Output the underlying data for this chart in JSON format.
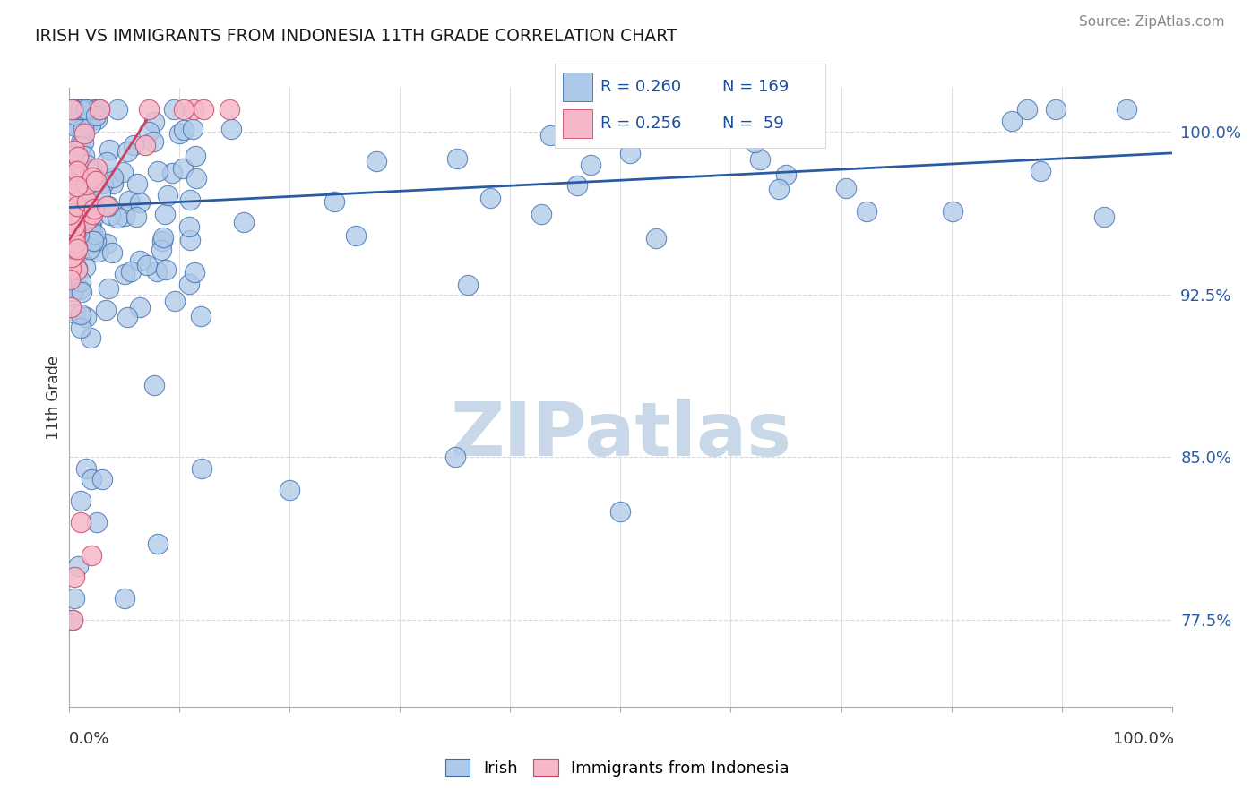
{
  "title": "IRISH VS IMMIGRANTS FROM INDONESIA 11TH GRADE CORRELATION CHART",
  "source": "Source: ZipAtlas.com",
  "ylabel": "11th Grade",
  "blue_color": "#adc8e8",
  "blue_edge_color": "#3a6cb0",
  "blue_line_color": "#2a5ba0",
  "pink_color": "#f5b8c8",
  "pink_edge_color": "#d04868",
  "pink_line_color": "#d04060",
  "legend_text_color": "#1a4d9e",
  "title_color": "#1a1a1a",
  "source_color": "#888888",
  "right_tick_color": "#2a5ba0",
  "background_color": "#ffffff",
  "grid_color": "#d8d8d8",
  "watermark_color": "#c8d8e8",
  "yticks": [
    77.5,
    85.0,
    92.5,
    100.0
  ],
  "ylim": [
    73.5,
    102.0
  ],
  "xlim": [
    0,
    100
  ],
  "n_irish": 169,
  "n_indo": 59,
  "R_irish": 0.26,
  "R_indo": 0.256
}
